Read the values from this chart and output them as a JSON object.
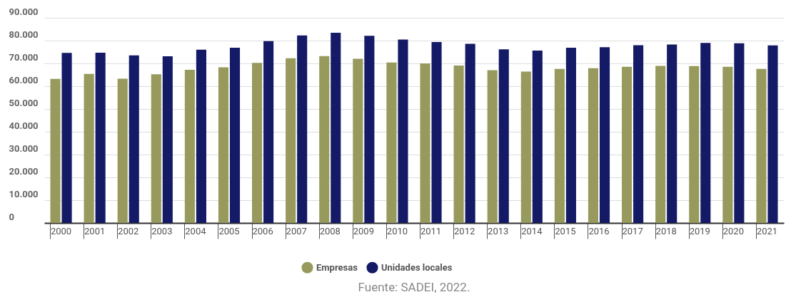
{
  "chart_data": {
    "type": "bar",
    "categories": [
      "2000",
      "2001",
      "2002",
      "2003",
      "2004",
      "2005",
      "2006",
      "2007",
      "2008",
      "2009",
      "2010",
      "2011",
      "2012",
      "2013",
      "2014",
      "2015",
      "2016",
      "2017",
      "2018",
      "2019",
      "2020",
      "2021"
    ],
    "series": [
      {
        "name": "Empresas",
        "color": "#979a5c",
        "values": [
          63200,
          65400,
          63300,
          65200,
          67200,
          68300,
          70200,
          72300,
          73200,
          72000,
          70400,
          70000,
          69100,
          67000,
          66400,
          67600,
          67900,
          68500,
          68900,
          68800,
          68500,
          67600
        ]
      },
      {
        "name": "Unidades locales",
        "color": "#141a66",
        "values": [
          74600,
          74700,
          73500,
          73100,
          76000,
          76900,
          79800,
          82300,
          83400,
          82100,
          80500,
          79400,
          78600,
          76200,
          75600,
          76900,
          77100,
          78000,
          78300,
          79000,
          78800,
          77900
        ]
      }
    ],
    "ylim": [
      0,
      90000
    ],
    "yticks": [
      {
        "value": 0,
        "label": "0"
      },
      {
        "value": 10000,
        "label": "10.000"
      },
      {
        "value": 20000,
        "label": "20.000"
      },
      {
        "value": 30000,
        "label": "30.000"
      },
      {
        "value": 40000,
        "label": "40.000"
      },
      {
        "value": 50000,
        "label": "50.000"
      },
      {
        "value": 60000,
        "label": "60.000"
      },
      {
        "value": 70000,
        "label": "70.000"
      },
      {
        "value": 80000,
        "label": "80.000"
      },
      {
        "value": 90000,
        "label": "90.000"
      }
    ],
    "grid": "y",
    "legend": "bottom",
    "annotations": [
      "Fuente: SADEI, 2022."
    ]
  }
}
